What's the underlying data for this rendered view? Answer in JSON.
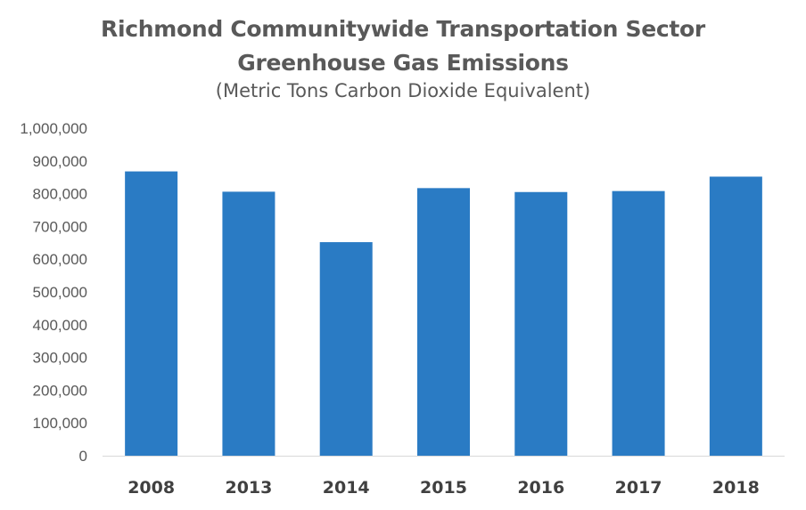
{
  "chart_data": {
    "type": "bar",
    "title": "Richmond Communitywide Transportation Sector Greenhouse Gas Emissions",
    "title_lines": [
      "Richmond Communitywide Transportation Sector",
      "Greenhouse Gas Emissions"
    ],
    "subtitle": "(Metric Tons Carbon Dioxide Equivalent)",
    "categories": [
      "2008",
      "2013",
      "2014",
      "2015",
      "2016",
      "2017",
      "2018"
    ],
    "values": [
      868000,
      806000,
      652000,
      817000,
      805000,
      808000,
      852000
    ],
    "ylim": [
      0,
      1000000
    ],
    "yticks": [
      0,
      100000,
      200000,
      300000,
      400000,
      500000,
      600000,
      700000,
      800000,
      900000,
      1000000
    ],
    "ytick_labels": [
      "0",
      "100,000",
      "200,000",
      "300,000",
      "400,000",
      "500,000",
      "600,000",
      "700,000",
      "800,000",
      "900,000",
      "1,000,000"
    ],
    "xlabel": "",
    "ylabel": "",
    "grid": false,
    "bar_color": "#2a7bc4"
  }
}
